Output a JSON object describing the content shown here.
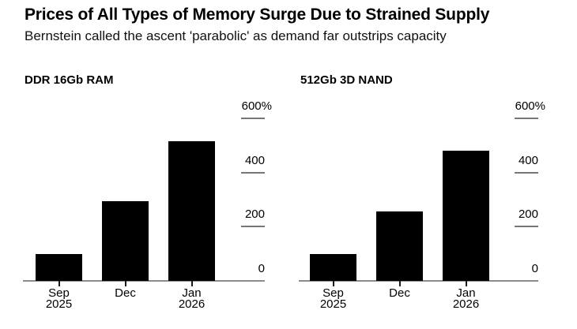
{
  "header": {
    "title": "Prices of All Types of Memory Surge Due to Strained Supply",
    "subtitle": "Bernstein called the ascent 'parabolic' as demand far outstrips capacity"
  },
  "colors": {
    "bar": "#000000",
    "axis_line": "#8c8c8c",
    "grid_tick_line": "#767676",
    "x_tick": "#1a1a1a",
    "text": "#000000",
    "background": "#ffffff"
  },
  "chart_data": [
    {
      "type": "bar",
      "title": "DDR 16Gb RAM",
      "categories": [
        "Sep 2025",
        "Dec",
        "Jan 2026"
      ],
      "category_lines": [
        [
          "Sep",
          "2025"
        ],
        [
          "Dec"
        ],
        [
          "Jan",
          "2026"
        ]
      ],
      "values": [
        100,
        295,
        515
      ],
      "unit": "%",
      "xlabel": "",
      "ylabel": "",
      "y_ticks": [
        "600%",
        "400",
        "200",
        "0"
      ],
      "ylim": [
        0,
        600
      ],
      "grid": "right-side tick dashes",
      "legend": "none",
      "bar_color": "#000000"
    },
    {
      "type": "bar",
      "title": "512Gb 3D NAND",
      "categories": [
        "Sep 2025",
        "Dec",
        "Jan 2026"
      ],
      "category_lines": [
        [
          "Sep",
          "2025"
        ],
        [
          "Dec"
        ],
        [
          "Jan",
          "2026"
        ]
      ],
      "values": [
        100,
        255,
        480
      ],
      "unit": "%",
      "xlabel": "",
      "ylabel": "",
      "y_ticks": [
        "600%",
        "400",
        "200",
        "0"
      ],
      "ylim": [
        0,
        600
      ],
      "grid": "right-side tick dashes",
      "legend": "none",
      "bar_color": "#000000"
    }
  ]
}
